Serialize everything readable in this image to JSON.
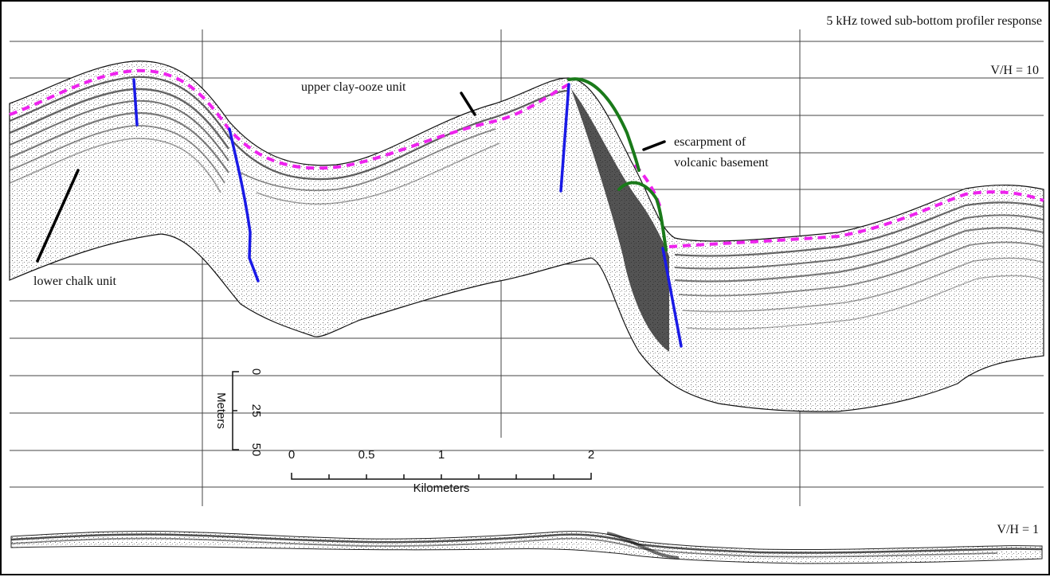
{
  "title": "5 kHz towed sub-bottom profiler response",
  "ratio_top": "V/H = 10",
  "ratio_bottom": "V/H = 1",
  "labels": {
    "upper_unit": "upper clay-ooze unit",
    "lower_unit": "lower chalk unit",
    "escarpment_line1": "escarpment of",
    "escarpment_line2": "volcanic basement"
  },
  "vertical_scale": {
    "title": "Meters",
    "ticks": [
      "0",
      "25",
      "50"
    ]
  },
  "horizontal_scale": {
    "title": "Kilometers",
    "ticks": [
      "0",
      "0.5",
      "1",
      "2"
    ]
  },
  "colors": {
    "unit_boundary": "#ee22ee",
    "faults": "#1a1ae6",
    "escarpment": "#1a7a1a",
    "seismic": "#2a2a2a",
    "grid": "#333333"
  }
}
